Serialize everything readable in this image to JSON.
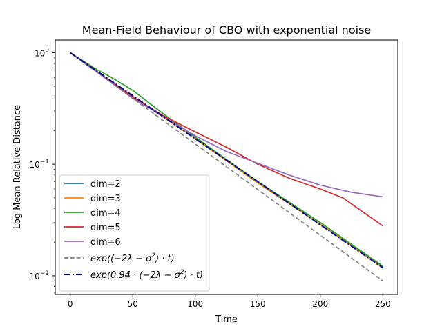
{
  "chart_data": {
    "type": "line",
    "title": "Mean-Field Behaviour of CBO with exponential noise",
    "xlabel": "Time",
    "ylabel": "Log Mean Relative Distance",
    "yscale": "log",
    "xlim": [
      -12,
      262
    ],
    "ylim": [
      0.0068,
      1.3
    ],
    "x_ticks": [
      0,
      50,
      100,
      150,
      200,
      250
    ],
    "x_tick_labels": [
      "0",
      "50",
      "100",
      "150",
      "200",
      "250"
    ],
    "y_ticks": [
      1,
      0.1,
      0.01
    ],
    "y_tick_labels": [
      {
        "base": "10",
        "exp": "0"
      },
      {
        "base": "10",
        "exp": "−1"
      },
      {
        "base": "10",
        "exp": "−2"
      }
    ],
    "grid": false,
    "legend_position": "lower-left",
    "series": [
      {
        "name": "dim=2",
        "color": "#1f77b4",
        "style": "solid",
        "x": [
          0,
          30,
          60,
          100,
          150,
          200,
          250
        ],
        "y": [
          1.0,
          0.58,
          0.34,
          0.17,
          0.068,
          0.029,
          0.012
        ]
      },
      {
        "name": "dim=3",
        "color": "#ff7f0e",
        "style": "solid",
        "x": [
          0,
          30,
          60,
          100,
          150,
          200,
          250
        ],
        "y": [
          1.0,
          0.58,
          0.34,
          0.17,
          0.068,
          0.029,
          0.0118
        ]
      },
      {
        "name": "dim=4",
        "color": "#2ca02c",
        "style": "solid",
        "x": [
          0,
          20,
          33,
          50,
          75,
          100,
          125,
          150,
          200,
          250
        ],
        "y": [
          1.0,
          0.72,
          0.6,
          0.46,
          0.28,
          0.175,
          0.11,
          0.07,
          0.03,
          0.0122
        ]
      },
      {
        "name": "dim=5",
        "color": "#d62728",
        "style": "solid",
        "x": [
          0,
          50,
          75,
          100,
          125,
          150,
          175,
          200,
          218,
          250
        ],
        "y": [
          1.0,
          0.4,
          0.27,
          0.195,
          0.142,
          0.1,
          0.075,
          0.06,
          0.05,
          0.028
        ]
      },
      {
        "name": "dim=6",
        "color": "#9467bd",
        "style": "solid",
        "x": [
          0,
          50,
          100,
          125,
          150,
          175,
          200,
          225,
          250
        ],
        "y": [
          1.0,
          0.39,
          0.18,
          0.13,
          0.102,
          0.08,
          0.065,
          0.056,
          0.051
        ]
      },
      {
        "name": "exp((−2λ − σ²)·t)",
        "name_text": "exp((−2λ − σ",
        "name_sup": "2",
        "name_tail": ") · t)",
        "color": "#7f7f7f",
        "style": "dashed",
        "x": [
          0,
          250
        ],
        "y": [
          1.0,
          0.009
        ]
      },
      {
        "name": "exp(0.94·(−2λ − σ²)·t)",
        "name_text": "exp(0.94 · (−2λ − σ",
        "name_sup": "2",
        "name_tail": ") · t)",
        "color": "#00008b",
        "style": "dashdot",
        "x": [
          0,
          250
        ],
        "y": [
          1.0,
          0.0118
        ]
      }
    ]
  }
}
